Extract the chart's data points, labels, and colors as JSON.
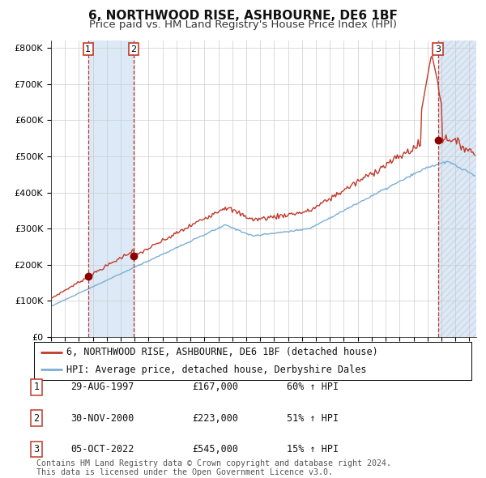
{
  "title": "6, NORTHWOOD RISE, ASHBOURNE, DE6 1BF",
  "subtitle": "Price paid vs. HM Land Registry's House Price Index (HPI)",
  "ylim": [
    0,
    820000
  ],
  "yticks": [
    0,
    100000,
    200000,
    300000,
    400000,
    500000,
    600000,
    700000,
    800000
  ],
  "ytick_labels": [
    "£0",
    "£100K",
    "£200K",
    "£300K",
    "£400K",
    "£500K",
    "£600K",
    "£700K",
    "£800K"
  ],
  "hpi_color": "#7bafd4",
  "price_color": "#c0392b",
  "marker_color": "#8b0000",
  "background_color": "#ffffff",
  "grid_color": "#cccccc",
  "shade_color": "#dce9f7",
  "title_fontsize": 11,
  "subtitle_fontsize": 9.5,
  "tick_fontsize": 8,
  "legend_fontsize": 8.5,
  "table_fontsize": 8.5,
  "transactions": [
    {
      "num": 1,
      "date_num": 1997.66,
      "price": 167000,
      "label": "1",
      "date_str": "29-AUG-1997",
      "price_str": "£167,000",
      "hpi_str": "60% ↑ HPI"
    },
    {
      "num": 2,
      "date_num": 2000.92,
      "price": 223000,
      "label": "2",
      "date_str": "30-NOV-2000",
      "price_str": "£223,000",
      "hpi_str": "51% ↑ HPI"
    },
    {
      "num": 3,
      "date_num": 2022.75,
      "price": 545000,
      "label": "3",
      "date_str": "05-OCT-2022",
      "price_str": "£545,000",
      "hpi_str": "15% ↑ HPI"
    }
  ],
  "legend_entries": [
    {
      "label": "6, NORTHWOOD RISE, ASHBOURNE, DE6 1BF (detached house)",
      "color": "#c0392b"
    },
    {
      "label": "HPI: Average price, detached house, Derbyshire Dales",
      "color": "#7bafd4"
    }
  ],
  "footer": "Contains HM Land Registry data © Crown copyright and database right 2024.\nThis data is licensed under the Open Government Licence v3.0.",
  "footer_fontsize": 7.2,
  "xlim_start": 1995.0,
  "xlim_end": 2025.5
}
